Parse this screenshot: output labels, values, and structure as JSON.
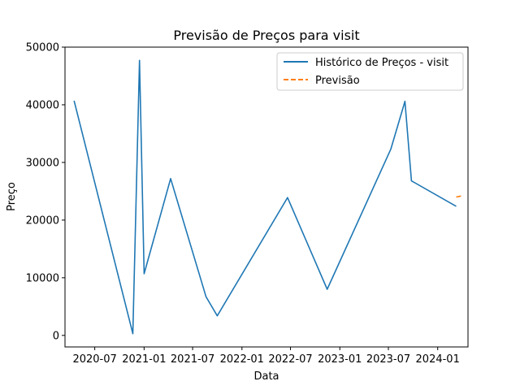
{
  "chart_data": {
    "type": "line",
    "title": "Previsão de Preços para visit",
    "xlabel": "Data",
    "ylabel": "Preço",
    "ylim": [
      -2000,
      50000
    ],
    "xlim": [
      "2020-03-12",
      "2024-04-23"
    ],
    "x_ticks": [
      "2020-07",
      "2021-01",
      "2021-07",
      "2022-01",
      "2022-07",
      "2023-01",
      "2023-07",
      "2024-01"
    ],
    "y_ticks": [
      0,
      10000,
      20000,
      30000,
      40000,
      50000
    ],
    "grid": false,
    "legend_position": "top-right",
    "series": [
      {
        "name": "Histórico de Preços - visit",
        "style": "solid",
        "color": "#1f77b4",
        "points": [
          {
            "x": "2020-04-15",
            "y": 40700
          },
          {
            "x": "2020-11-20",
            "y": 300
          },
          {
            "x": "2020-12-15",
            "y": 47700
          },
          {
            "x": "2021-01-01",
            "y": 10700
          },
          {
            "x": "2021-04-10",
            "y": 27200
          },
          {
            "x": "2021-08-20",
            "y": 6700
          },
          {
            "x": "2021-10-01",
            "y": 3400
          },
          {
            "x": "2022-06-20",
            "y": 23900
          },
          {
            "x": "2022-11-15",
            "y": 8000
          },
          {
            "x": "2023-07-10",
            "y": 32300
          },
          {
            "x": "2023-09-01",
            "y": 40600
          },
          {
            "x": "2023-09-25",
            "y": 26800
          },
          {
            "x": "2024-03-10",
            "y": 22400
          }
        ]
      },
      {
        "name": "Previsão",
        "style": "dashed",
        "color": "#ff7f0e",
        "points": [
          {
            "x": "2024-03-10",
            "y": 24000
          },
          {
            "x": "2024-03-20",
            "y": 24100
          },
          {
            "x": "2024-04-01",
            "y": 24200
          }
        ]
      }
    ]
  }
}
